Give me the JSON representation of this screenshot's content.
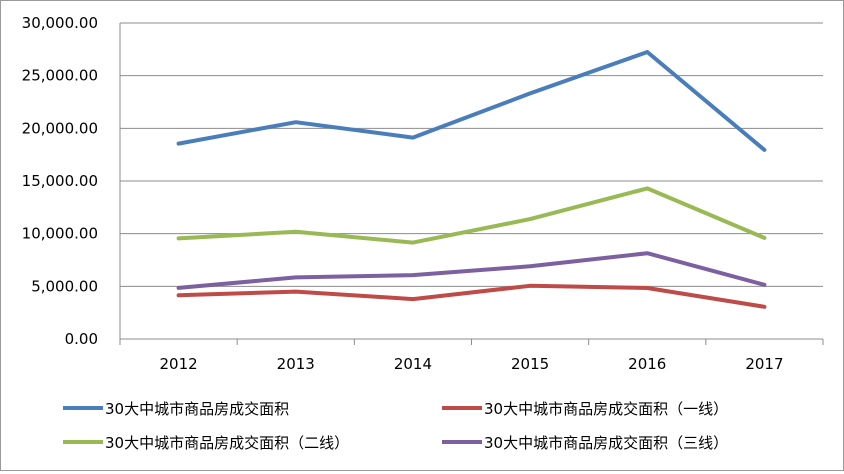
{
  "chart_data": {
    "type": "line",
    "categories": [
      "2012",
      "2013",
      "2014",
      "2015",
      "2016",
      "2017"
    ],
    "y_tick_labels": [
      "0.00",
      "5,000.00",
      "10,000.00",
      "15,000.00",
      "20,000.00",
      "25,000.00",
      "30,000.00"
    ],
    "y_ticks": [
      0,
      5000,
      10000,
      15000,
      20000,
      25000,
      30000
    ],
    "ylim": [
      0,
      30000
    ],
    "grid": true,
    "legend_position": "bottom",
    "series": [
      {
        "name": "30大中城市商品房成交面积",
        "color": "#4a7ebb",
        "values": [
          18550,
          20580,
          19120,
          23320,
          27250,
          17950
        ]
      },
      {
        "name": "30大中城市商品房成交面积（一线）",
        "color": "#be4b48",
        "values": [
          4150,
          4500,
          3790,
          5050,
          4840,
          3060
        ]
      },
      {
        "name": "30大中城市商品房成交面积（二线）",
        "color": "#98b954",
        "values": [
          9550,
          10180,
          9150,
          11380,
          14300,
          9600
        ]
      },
      {
        "name": "30大中城市商品房成交面积（三线）",
        "color": "#7d60a0",
        "values": [
          4850,
          5850,
          6070,
          6900,
          8150,
          5150
        ]
      }
    ]
  }
}
